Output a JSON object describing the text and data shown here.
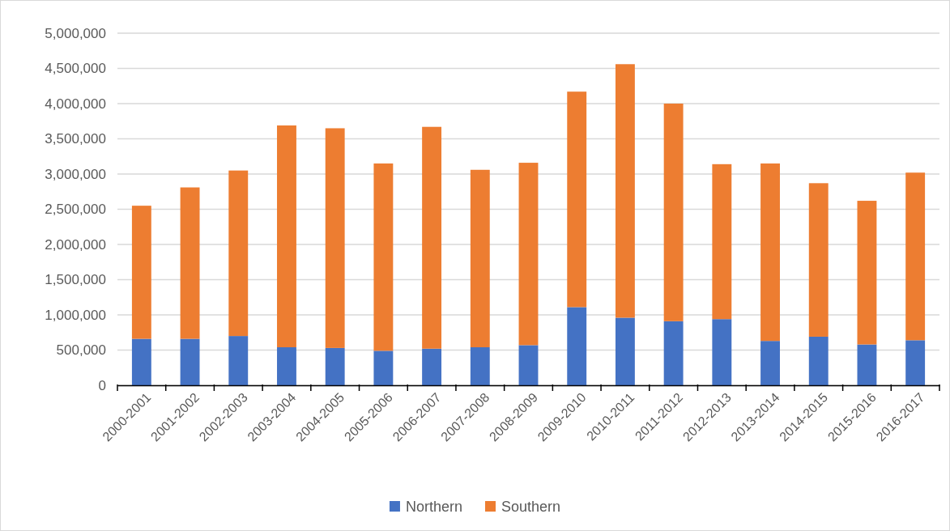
{
  "chart_data": {
    "type": "bar",
    "stacked": true,
    "categories": [
      "2000-2001",
      "2001-2002",
      "2002-2003",
      "2003-2004",
      "2004-2005",
      "2005-2006",
      "2006-2007",
      "2007-2008",
      "2008-2009",
      "2009-2010",
      "2010-2011",
      "2011-2012",
      "2012-2013",
      "2013-2014",
      "2014-2015",
      "2015-2016",
      "2016-2017"
    ],
    "series": [
      {
        "name": "Northern",
        "color": "#4472c4",
        "values": [
          660000,
          660000,
          700000,
          540000,
          530000,
          490000,
          520000,
          540000,
          570000,
          1110000,
          960000,
          910000,
          940000,
          630000,
          690000,
          580000,
          640000
        ]
      },
      {
        "name": "Southern",
        "color": "#ed7d31",
        "values": [
          1890000,
          2150000,
          2350000,
          3150000,
          3120000,
          2660000,
          3150000,
          2520000,
          2590000,
          3060000,
          3600000,
          3090000,
          2200000,
          2520000,
          2180000,
          2040000,
          2380000
        ]
      }
    ],
    "ylim": [
      0,
      5000000
    ],
    "yticks": [
      {
        "value": 0,
        "label": "0"
      },
      {
        "value": 500000,
        "label": "500,000"
      },
      {
        "value": 1000000,
        "label": "1,000,000"
      },
      {
        "value": 1500000,
        "label": "1,500,000"
      },
      {
        "value": 2000000,
        "label": "2,000,000"
      },
      {
        "value": 2500000,
        "label": "2,500,000"
      },
      {
        "value": 3000000,
        "label": "3,000,000"
      },
      {
        "value": 3500000,
        "label": "3,500,000"
      },
      {
        "value": 4000000,
        "label": "4,000,000"
      },
      {
        "value": 4500000,
        "label": "4,500,000"
      },
      {
        "value": 5000000,
        "label": "5,000,000"
      }
    ],
    "grid": "y",
    "legend": "bottom"
  }
}
